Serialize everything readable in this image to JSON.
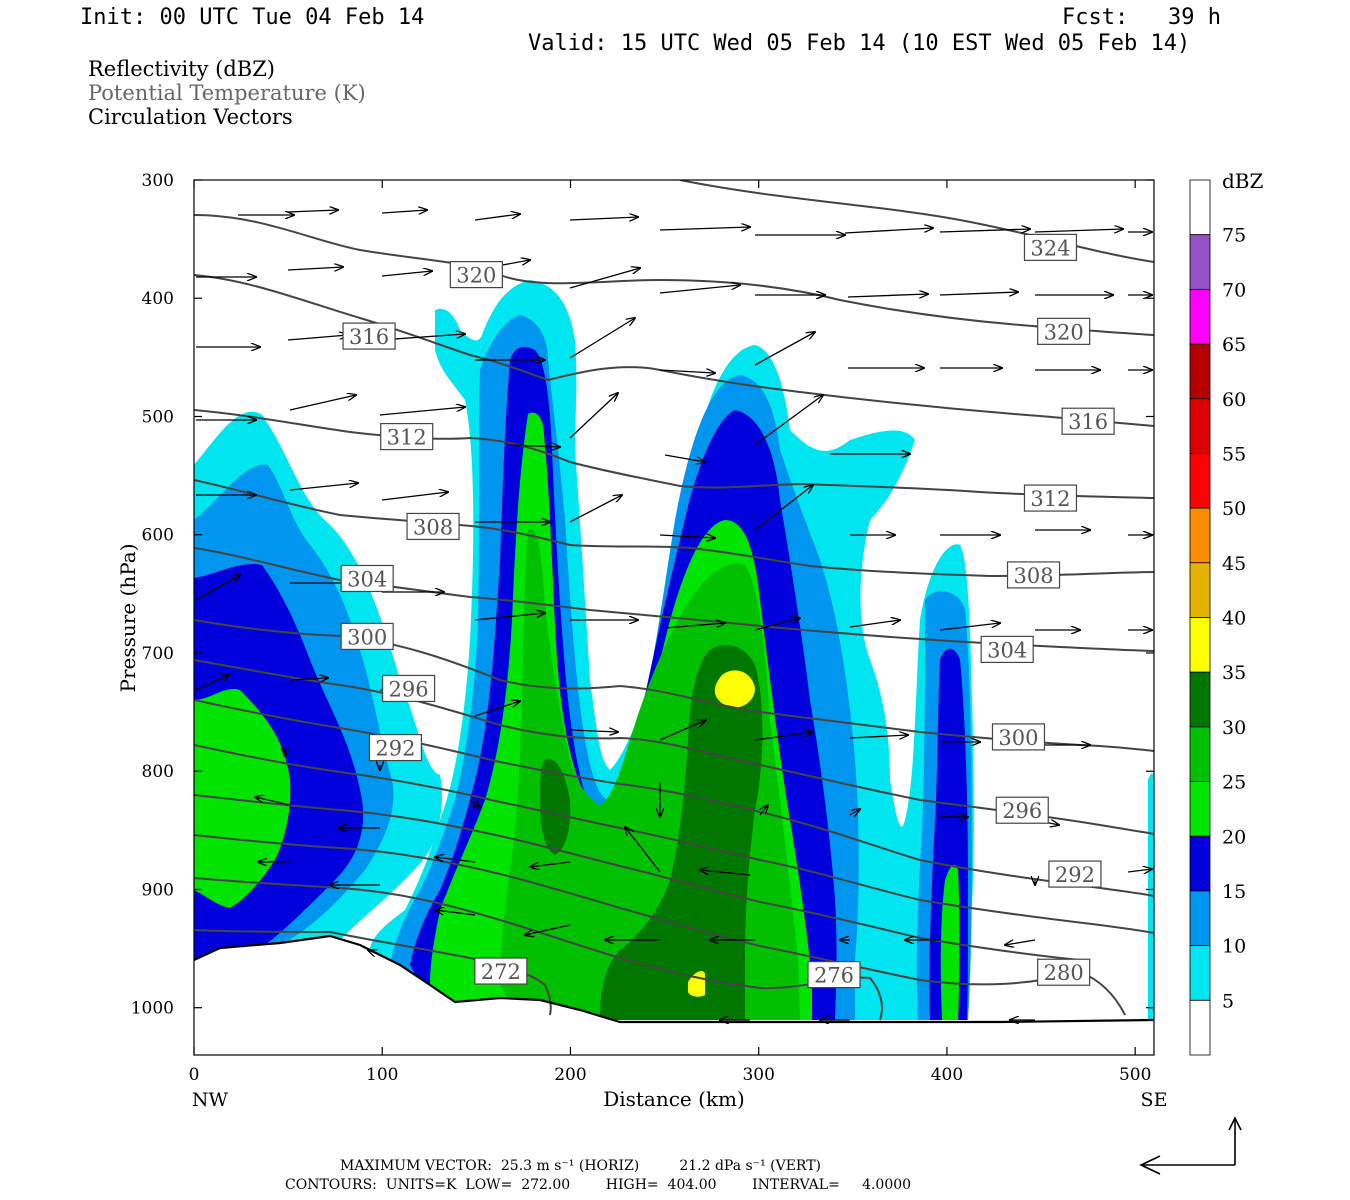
{
  "header": {
    "init": "Init: 00 UTC Tue 04 Feb 14",
    "fcst": "Fcst:   39 h",
    "valid": "Valid: 15 UTC Wed 05 Feb 14 (10 EST Wed 05 Feb 14)"
  },
  "titles": {
    "line1": "Reflectivity (dBZ)",
    "line2": "Potential Temperature (K)",
    "line3": "Circulation Vectors"
  },
  "footer": {
    "line1": "MAXIMUM VECTOR:  25.3 m s⁻¹ (HORIZ)         21.2 dPa s⁻¹ (VERT)",
    "line2": "CONTOURS:  UNITS=K  LOW=  272.00        HIGH=  404.00        INTERVAL=     4.0000"
  },
  "colors": {
    "dbz": [
      "#ffffff",
      "#00e6f0",
      "#0096f0",
      "#0000dc",
      "#00e400",
      "#00c000",
      "#007800",
      "#ffff00",
      "#e6b400",
      "#ff8c00",
      "#ff0000",
      "#dc0000",
      "#b40000",
      "#ff00ff",
      "#9650c8",
      "#ffffff"
    ],
    "contour": "#444444"
  },
  "chart_data": {
    "type": "cross-section",
    "xlabel": "Distance (km)",
    "ylabel": "Pressure (hPa)",
    "x_end_labels": [
      "NW",
      "SE"
    ],
    "xlim": [
      0,
      510
    ],
    "ylim": [
      1040,
      300
    ],
    "x_ticks": [
      0,
      100,
      200,
      300,
      400,
      500
    ],
    "y_ticks": [
      300,
      400,
      500,
      600,
      700,
      800,
      900,
      1000
    ],
    "colorbar": {
      "title": "dBZ",
      "levels": [
        5,
        10,
        15,
        20,
        25,
        30,
        35,
        40,
        45,
        50,
        55,
        60,
        65,
        70,
        75
      ]
    },
    "theta_contour_labels": [
      {
        "value": "324",
        "x": 455,
        "p": 357
      },
      {
        "value": "320",
        "x": 150,
        "p": 380
      },
      {
        "value": "320",
        "x": 462,
        "p": 428
      },
      {
        "value": "316",
        "x": 93,
        "p": 432
      },
      {
        "value": "316",
        "x": 475,
        "p": 504
      },
      {
        "value": "312",
        "x": 113,
        "p": 517
      },
      {
        "value": "312",
        "x": 455,
        "p": 569
      },
      {
        "value": "308",
        "x": 127,
        "p": 593
      },
      {
        "value": "308",
        "x": 446,
        "p": 634
      },
      {
        "value": "304",
        "x": 92,
        "p": 637
      },
      {
        "value": "304",
        "x": 432,
        "p": 697
      },
      {
        "value": "300",
        "x": 92,
        "p": 686
      },
      {
        "value": "300",
        "x": 438,
        "p": 771
      },
      {
        "value": "296",
        "x": 114,
        "p": 730
      },
      {
        "value": "296",
        "x": 440,
        "p": 833
      },
      {
        "value": "292",
        "x": 107,
        "p": 780
      },
      {
        "value": "292",
        "x": 468,
        "p": 887
      },
      {
        "value": "280",
        "x": 462,
        "p": 970
      },
      {
        "value": "276",
        "x": 340,
        "p": 972
      },
      {
        "value": "272",
        "x": 163,
        "p": 969
      }
    ],
    "reflectivity_max": {
      "value": 35,
      "x": 285,
      "p": 730
    }
  }
}
